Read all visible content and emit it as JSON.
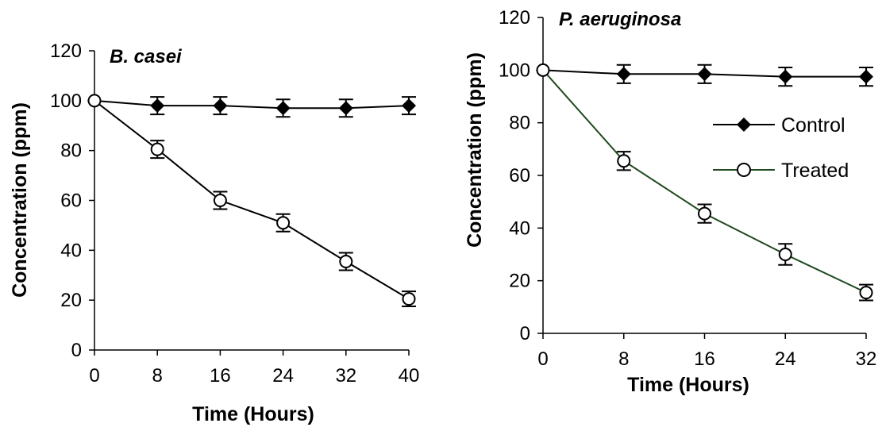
{
  "chart_data": [
    {
      "type": "line",
      "title": "B. casei",
      "xlabel": "Time (Hours)",
      "ylabel": "Concentration (ppm)",
      "x": [
        0,
        8,
        16,
        24,
        32,
        40
      ],
      "xticks": [
        "0",
        "8",
        "16",
        "24",
        "32",
        "40"
      ],
      "yticks": [
        "0",
        "20",
        "40",
        "60",
        "80",
        "100",
        "120"
      ],
      "xlim": [
        0,
        40
      ],
      "ylim": [
        0,
        120
      ],
      "grid": false,
      "series": [
        {
          "name": "Control",
          "marker": "diamond-filled",
          "color": "#000000",
          "values": [
            100,
            98,
            98,
            97,
            97,
            98
          ],
          "errors": [
            0,
            3.5,
            3.5,
            3.5,
            3.5,
            3.5
          ]
        },
        {
          "name": "Treated",
          "marker": "circle-open",
          "color": "#000000",
          "values": [
            100,
            80.5,
            60,
            51,
            35.5,
            20.5
          ],
          "errors": [
            0,
            3.5,
            3.5,
            3.5,
            3.5,
            3
          ]
        }
      ]
    },
    {
      "type": "line",
      "title": "P. aeruginosa",
      "xlabel": "Time (Hours)",
      "ylabel": "Concentration (ppm)",
      "x": [
        0,
        8,
        16,
        24,
        32
      ],
      "xticks": [
        "0",
        "8",
        "16",
        "24",
        "32"
      ],
      "yticks": [
        "0",
        "20",
        "40",
        "60",
        "80",
        "100",
        "120"
      ],
      "xlim": [
        0,
        32
      ],
      "ylim": [
        0,
        120
      ],
      "grid": false,
      "legend": "right",
      "series": [
        {
          "name": "Control",
          "marker": "diamond-filled",
          "color": "#000000",
          "values": [
            100,
            98.5,
            98.5,
            97.5,
            97.5
          ],
          "errors": [
            0,
            3.5,
            3.5,
            3.5,
            3.5
          ]
        },
        {
          "name": "Treated",
          "marker": "circle-open",
          "color": "#1f4a1f",
          "values": [
            100,
            65.5,
            45.5,
            30,
            15.5
          ],
          "errors": [
            0,
            3.5,
            3.5,
            4,
            3
          ]
        }
      ]
    }
  ]
}
